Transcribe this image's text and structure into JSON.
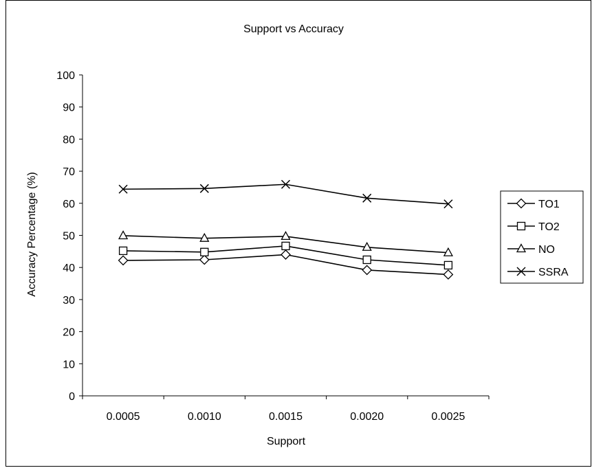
{
  "chart_data": {
    "type": "line",
    "title": "Support vs Accuracy",
    "xlabel": "Support",
    "ylabel": "Accuracy Percentage (%)",
    "categories": [
      "0.0005",
      "0.0010",
      "0.0015",
      "0.0020",
      "0.0025"
    ],
    "ylim": [
      0,
      100
    ],
    "yticks": [
      "0",
      "10",
      "20",
      "30",
      "40",
      "50",
      "60",
      "70",
      "80",
      "90",
      "100"
    ],
    "grid": false,
    "legend_position": "right",
    "series": [
      {
        "name": "TO1",
        "marker": "diamond",
        "values": [
          42.2,
          42.4,
          44.0,
          39.2,
          37.8
        ]
      },
      {
        "name": "TO2",
        "marker": "square",
        "values": [
          45.2,
          44.8,
          46.7,
          42.4,
          40.7
        ]
      },
      {
        "name": "NO",
        "marker": "triangle",
        "values": [
          49.9,
          49.1,
          49.7,
          46.3,
          44.6
        ]
      },
      {
        "name": "SSRA",
        "marker": "cross",
        "values": [
          64.4,
          64.6,
          65.9,
          61.6,
          59.8
        ]
      }
    ],
    "colors": {
      "line": "#000000",
      "marker_fill": "#ffffff"
    }
  }
}
